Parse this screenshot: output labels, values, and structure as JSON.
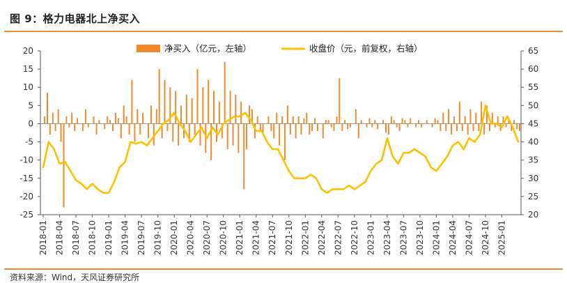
{
  "header": {
    "title": "图 9：格力电器北上净买入"
  },
  "footer": {
    "source": "资料来源：Wind，天风证券研究所"
  },
  "colors": {
    "accent": "#ec8c3a",
    "bar": "#ef8a2e",
    "line": "#ffc000"
  },
  "chart_data": {
    "type": "bar+line",
    "title": "",
    "x_ticks": [
      "2018-01",
      "2018-04",
      "2018-07",
      "2018-10",
      "2019-01",
      "2019-04",
      "2019-07",
      "2019-10",
      "2020-01",
      "2020-04",
      "2020-07",
      "2020-10",
      "2021-01",
      "2021-04",
      "2021-07",
      "2021-10",
      "2022-01",
      "2022-04",
      "2022-07",
      "2022-10",
      "2023-01",
      "2023-04",
      "2023-07",
      "2023-10",
      "2024-01",
      "2024-04",
      "2024-07",
      "2024-10",
      "2025-01"
    ],
    "y_left": {
      "min": -25,
      "max": 20,
      "step": 5,
      "ticks": [
        20,
        15,
        10,
        5,
        0,
        -5,
        -10,
        -15,
        -20,
        -25
      ]
    },
    "y_right": {
      "min": 20,
      "max": 65,
      "step": 5,
      "ticks": [
        65,
        60,
        55,
        50,
        45,
        40,
        35,
        30,
        25,
        20
      ]
    },
    "legend": [
      {
        "name": "净买入（亿元，左轴）",
        "kind": "bar"
      },
      {
        "name": "收盘价（元，前复权，右轴）",
        "kind": "line"
      }
    ],
    "legend_position": "top",
    "series": [
      {
        "name": "净买入（亿元，左轴）",
        "axis": "left",
        "type": "bar",
        "points": [
          [
            "2018-01",
            2
          ],
          [
            "2018-01",
            8.5
          ],
          [
            "2018-02",
            -3
          ],
          [
            "2018-02",
            3
          ],
          [
            "2018-03",
            -2
          ],
          [
            "2018-03",
            4
          ],
          [
            "2018-04",
            -5
          ],
          [
            "2018-04",
            -23
          ],
          [
            "2018-05",
            2
          ],
          [
            "2018-05",
            -1
          ],
          [
            "2018-06",
            3
          ],
          [
            "2018-06",
            -2
          ],
          [
            "2018-07",
            1.5
          ],
          [
            "2018-08",
            -2
          ],
          [
            "2018-08",
            4
          ],
          [
            "2018-09",
            -1
          ],
          [
            "2018-10",
            2
          ],
          [
            "2018-10",
            -3
          ],
          [
            "2018-11",
            1
          ],
          [
            "2018-12",
            -1.5
          ],
          [
            "2018-12",
            2
          ],
          [
            "2019-01",
            1
          ],
          [
            "2019-01",
            -2
          ],
          [
            "2019-02",
            3
          ],
          [
            "2019-02",
            1.5
          ],
          [
            "2019-03",
            -4
          ],
          [
            "2019-03",
            5
          ],
          [
            "2019-04",
            2
          ],
          [
            "2019-04",
            -3
          ],
          [
            "2019-05",
            12
          ],
          [
            "2019-05",
            -5
          ],
          [
            "2019-06",
            4
          ],
          [
            "2019-06",
            -3
          ],
          [
            "2019-07",
            3
          ],
          [
            "2019-08",
            -4
          ],
          [
            "2019-08",
            5
          ],
          [
            "2019-09",
            -6
          ],
          [
            "2019-09",
            4
          ],
          [
            "2019-10",
            15
          ],
          [
            "2019-10",
            -4
          ],
          [
            "2019-11",
            12
          ],
          [
            "2019-11",
            -2
          ],
          [
            "2019-12",
            10
          ],
          [
            "2019-12",
            -5
          ],
          [
            "2020-01",
            9
          ],
          [
            "2020-01",
            -6
          ],
          [
            "2020-02",
            5
          ],
          [
            "2020-02",
            -4
          ],
          [
            "2020-03",
            8
          ],
          [
            "2020-03",
            -5
          ],
          [
            "2020-04",
            7
          ],
          [
            "2020-04",
            -3
          ],
          [
            "2020-05",
            15
          ],
          [
            "2020-05",
            -6
          ],
          [
            "2020-06",
            10
          ],
          [
            "2020-06",
            -8
          ],
          [
            "2020-07",
            12
          ],
          [
            "2020-07",
            -10
          ],
          [
            "2020-08",
            9
          ],
          [
            "2020-08",
            -5
          ],
          [
            "2020-09",
            6
          ],
          [
            "2020-09",
            -4
          ],
          [
            "2020-10",
            17
          ],
          [
            "2020-10",
            -7
          ],
          [
            "2020-11",
            9
          ],
          [
            "2020-11",
            -6
          ],
          [
            "2020-12",
            8
          ],
          [
            "2020-12",
            -8
          ],
          [
            "2021-01",
            6
          ],
          [
            "2021-01",
            -18
          ],
          [
            "2021-02",
            -7
          ],
          [
            "2021-02",
            5
          ],
          [
            "2021-03",
            4
          ],
          [
            "2021-03",
            -4
          ],
          [
            "2021-04",
            2
          ],
          [
            "2021-04",
            -2
          ],
          [
            "2021-05",
            -3
          ],
          [
            "2021-06",
            2
          ],
          [
            "2021-06",
            -2
          ],
          [
            "2021-07",
            -4
          ],
          [
            "2021-07",
            3
          ],
          [
            "2021-08",
            -6
          ],
          [
            "2021-08",
            2
          ],
          [
            "2021-09",
            -10
          ],
          [
            "2021-09",
            5
          ],
          [
            "2021-10",
            -3
          ],
          [
            "2021-10",
            2
          ],
          [
            "2021-11",
            -4
          ],
          [
            "2021-11",
            2
          ],
          [
            "2021-12",
            -3
          ],
          [
            "2021-12",
            1.5
          ],
          [
            "2022-01",
            3
          ],
          [
            "2022-01",
            -3
          ],
          [
            "2022-02",
            -2
          ],
          [
            "2022-02",
            1.5
          ],
          [
            "2022-03",
            -2
          ],
          [
            "2022-04",
            -4
          ],
          [
            "2022-04",
            1
          ],
          [
            "2022-05",
            1
          ],
          [
            "2022-05",
            -1
          ],
          [
            "2022-06",
            -2
          ],
          [
            "2022-06",
            2
          ],
          [
            "2022-07",
            12.5
          ],
          [
            "2022-07",
            -2
          ],
          [
            "2022-08",
            1
          ],
          [
            "2022-08",
            -1.5
          ],
          [
            "2022-09",
            -1
          ],
          [
            "2022-10",
            4
          ],
          [
            "2022-10",
            -4
          ],
          [
            "2022-11",
            1
          ],
          [
            "2022-12",
            -1
          ],
          [
            "2022-12",
            1.5
          ],
          [
            "2023-01",
            -1
          ],
          [
            "2023-01",
            1
          ],
          [
            "2023-02",
            -1.5
          ],
          [
            "2023-03",
            1
          ],
          [
            "2023-03",
            -2.5
          ],
          [
            "2023-04",
            -3
          ],
          [
            "2023-04",
            2
          ],
          [
            "2023-05",
            1
          ],
          [
            "2023-05",
            -1
          ],
          [
            "2023-06",
            -2
          ],
          [
            "2023-06",
            1.5
          ],
          [
            "2023-07",
            1
          ],
          [
            "2023-07",
            -1
          ],
          [
            "2023-08",
            1.5
          ],
          [
            "2023-09",
            -1
          ],
          [
            "2023-09",
            1
          ],
          [
            "2023-10",
            -1
          ],
          [
            "2023-11",
            1
          ],
          [
            "2023-12",
            -1
          ],
          [
            "2023-12",
            1.5
          ],
          [
            "2024-01",
            1
          ],
          [
            "2024-01",
            -2
          ],
          [
            "2024-02",
            3
          ],
          [
            "2024-02",
            -2
          ],
          [
            "2024-03",
            4
          ],
          [
            "2024-03",
            -3
          ],
          [
            "2024-04",
            2
          ],
          [
            "2024-04",
            -2
          ],
          [
            "2024-05",
            6
          ],
          [
            "2024-05",
            -2
          ],
          [
            "2024-06",
            2
          ],
          [
            "2024-06",
            -3
          ],
          [
            "2024-07",
            4
          ],
          [
            "2024-07",
            -2
          ],
          [
            "2024-08",
            3
          ],
          [
            "2024-08",
            -2
          ],
          [
            "2024-09",
            6
          ],
          [
            "2024-09",
            -3
          ],
          [
            "2024-10",
            5
          ],
          [
            "2024-10",
            -2
          ],
          [
            "2024-11",
            3
          ],
          [
            "2024-11",
            -1
          ],
          [
            "2024-12",
            2
          ],
          [
            "2024-12",
            -2
          ],
          [
            "2025-01",
            2
          ],
          [
            "2025-01",
            -1
          ],
          [
            "2025-02",
            1.5
          ],
          [
            "2025-02",
            -2
          ],
          [
            "2025-03",
            1
          ],
          [
            "2025-03",
            -1.5
          ],
          [
            "2025-04",
            -2
          ]
        ]
      },
      {
        "name": "收盘价（元，前复权，右轴）",
        "axis": "right",
        "type": "line",
        "points": [
          [
            "2018-01",
            33
          ],
          [
            "2018-02",
            40
          ],
          [
            "2018-03",
            38
          ],
          [
            "2018-04",
            34
          ],
          [
            "2018-05",
            34.5
          ],
          [
            "2018-06",
            32
          ],
          [
            "2018-07",
            29.5
          ],
          [
            "2018-08",
            28.5
          ],
          [
            "2018-09",
            27
          ],
          [
            "2018-10",
            28.5
          ],
          [
            "2018-11",
            27
          ],
          [
            "2018-12",
            26
          ],
          [
            "2019-01",
            26
          ],
          [
            "2019-02",
            29
          ],
          [
            "2019-03",
            33
          ],
          [
            "2019-04",
            34.5
          ],
          [
            "2019-05",
            40
          ],
          [
            "2019-06",
            39.5
          ],
          [
            "2019-07",
            40
          ],
          [
            "2019-08",
            39
          ],
          [
            "2019-09",
            41
          ],
          [
            "2019-10",
            43
          ],
          [
            "2019-11",
            45
          ],
          [
            "2019-12",
            46
          ],
          [
            "2020-01",
            48
          ],
          [
            "2020-02",
            45
          ],
          [
            "2020-03",
            43
          ],
          [
            "2020-04",
            40
          ],
          [
            "2020-05",
            42
          ],
          [
            "2020-06",
            44
          ],
          [
            "2020-07",
            41
          ],
          [
            "2020-08",
            44
          ],
          [
            "2020-09",
            42
          ],
          [
            "2020-10",
            45
          ],
          [
            "2020-11",
            46
          ],
          [
            "2020-12",
            47
          ],
          [
            "2021-01",
            47
          ],
          [
            "2021-02",
            48
          ],
          [
            "2021-03",
            46
          ],
          [
            "2021-04",
            43
          ],
          [
            "2021-05",
            43
          ],
          [
            "2021-06",
            40
          ],
          [
            "2021-07",
            38
          ],
          [
            "2021-08",
            38
          ],
          [
            "2021-09",
            35
          ],
          [
            "2021-10",
            32
          ],
          [
            "2021-11",
            30
          ],
          [
            "2021-12",
            30
          ],
          [
            "2022-01",
            30
          ],
          [
            "2022-02",
            31
          ],
          [
            "2022-03",
            30
          ],
          [
            "2022-04",
            27
          ],
          [
            "2022-05",
            26
          ],
          [
            "2022-06",
            27
          ],
          [
            "2022-07",
            27
          ],
          [
            "2022-08",
            27
          ],
          [
            "2022-09",
            28
          ],
          [
            "2022-10",
            27
          ],
          [
            "2022-11",
            28
          ],
          [
            "2022-12",
            29
          ],
          [
            "2023-01",
            32
          ],
          [
            "2023-02",
            34
          ],
          [
            "2023-03",
            35
          ],
          [
            "2023-04",
            41
          ],
          [
            "2023-05",
            36
          ],
          [
            "2023-06",
            34
          ],
          [
            "2023-07",
            37
          ],
          [
            "2023-08",
            37
          ],
          [
            "2023-09",
            38
          ],
          [
            "2023-10",
            37
          ],
          [
            "2023-11",
            36
          ],
          [
            "2023-12",
            33
          ],
          [
            "2024-01",
            32
          ],
          [
            "2024-02",
            34
          ],
          [
            "2024-03",
            36
          ],
          [
            "2024-04",
            39
          ],
          [
            "2024-05",
            40
          ],
          [
            "2024-06",
            38
          ],
          [
            "2024-07",
            41
          ],
          [
            "2024-08",
            40
          ],
          [
            "2024-09",
            42
          ],
          [
            "2024-10",
            50
          ],
          [
            "2024-11",
            45
          ],
          [
            "2024-12",
            45
          ],
          [
            "2025-01",
            44
          ],
          [
            "2025-02",
            47
          ],
          [
            "2025-03",
            44
          ],
          [
            "2025-04",
            40
          ]
        ]
      }
    ]
  }
}
